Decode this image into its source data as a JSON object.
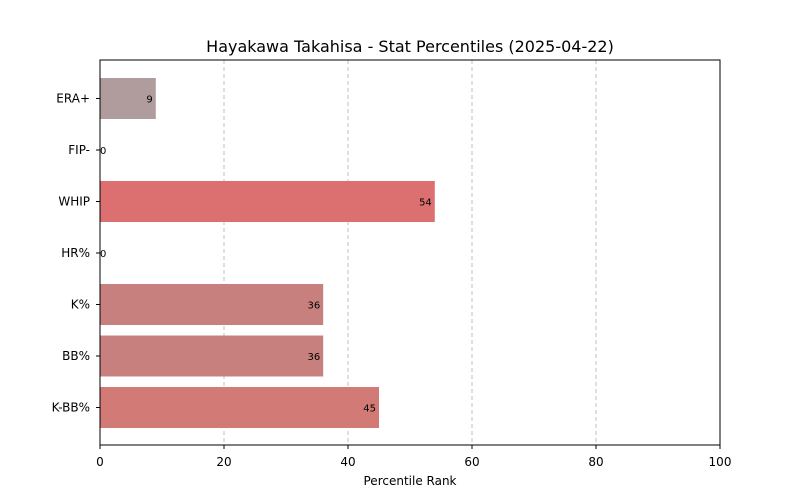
{
  "chart_data": {
    "type": "bar",
    "orientation": "horizontal",
    "title": "Hayakawa Takahisa - Stat Percentiles (2025-04-22)",
    "xlabel": "Percentile Rank",
    "ylabel": "",
    "xlim": [
      0,
      100
    ],
    "xticks": [
      0,
      20,
      40,
      60,
      80,
      100
    ],
    "grid": "x-dashed",
    "categories": [
      "ERA+",
      "FIP-",
      "WHIP",
      "HR%",
      "K%",
      "BB%",
      "K-BB%"
    ],
    "values": [
      9,
      0,
      54,
      0,
      36,
      36,
      45
    ],
    "colors": [
      "#b09c9c",
      "#c89090",
      "#dc7070",
      "#c89090",
      "#c8807e",
      "#c8807e",
      "#d27a76"
    ]
  }
}
